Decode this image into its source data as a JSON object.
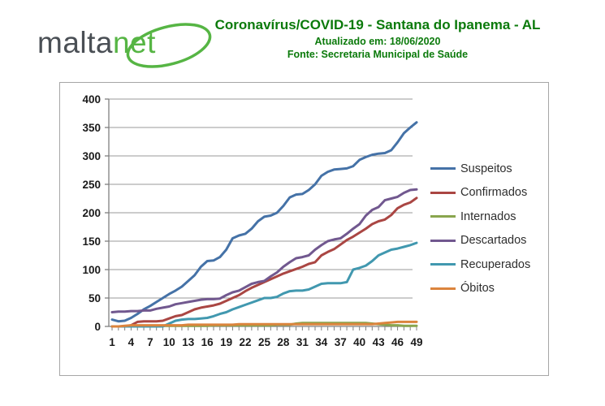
{
  "header": {
    "logo_part1": "malta",
    "logo_part2": "net",
    "logo_gray": "#4a4f55",
    "logo_green": "#56b544",
    "title": "Coronavírus/COVID-19 - Santana do Ipanema - AL",
    "subtitle1": "Atualizado em: 18/06/2020",
    "subtitle2": "Fonte: Secretaria Municipal de Saúde",
    "title_color": "#0b7a0b"
  },
  "chart_data": {
    "type": "line",
    "title": "",
    "xlabel": "",
    "ylabel": "",
    "x": [
      1,
      2,
      3,
      4,
      5,
      6,
      7,
      8,
      9,
      10,
      11,
      12,
      13,
      14,
      15,
      16,
      17,
      18,
      19,
      20,
      21,
      22,
      23,
      24,
      25,
      26,
      27,
      28,
      29,
      30,
      31,
      32,
      33,
      34,
      35,
      36,
      37,
      38,
      39,
      40,
      41,
      42,
      43,
      44,
      45,
      46,
      47,
      48,
      49
    ],
    "x_tick_labels": [
      1,
      4,
      7,
      10,
      13,
      16,
      19,
      22,
      25,
      28,
      31,
      34,
      37,
      40,
      43,
      46,
      49
    ],
    "yticks": [
      0,
      50,
      100,
      150,
      200,
      250,
      300,
      350,
      400
    ],
    "ylim": [
      0,
      400
    ],
    "grid": true,
    "legend_position": "right",
    "series": [
      {
        "name": "Suspeitos",
        "color": "#4572a7",
        "values": [
          12,
          9,
          10,
          15,
          22,
          30,
          36,
          43,
          50,
          57,
          63,
          70,
          80,
          90,
          105,
          115,
          116,
          122,
          135,
          155,
          160,
          163,
          172,
          185,
          193,
          195,
          200,
          212,
          227,
          232,
          233,
          240,
          250,
          265,
          272,
          276,
          277,
          278,
          282,
          293,
          298,
          302,
          304,
          305,
          310,
          324,
          340,
          350,
          359
        ]
      },
      {
        "name": "Confirmados",
        "color": "#aa4643",
        "values": [
          0,
          0,
          0,
          2,
          8,
          9,
          9,
          9,
          10,
          14,
          18,
          20,
          25,
          30,
          33,
          35,
          37,
          40,
          45,
          50,
          55,
          62,
          68,
          73,
          78,
          83,
          88,
          93,
          97,
          101,
          105,
          110,
          113,
          125,
          131,
          136,
          144,
          152,
          158,
          165,
          172,
          180,
          185,
          188,
          196,
          208,
          214,
          218,
          226
        ]
      },
      {
        "name": "Internados",
        "color": "#89a54e",
        "values": [
          0,
          0,
          0,
          0,
          0,
          0,
          0,
          0,
          1,
          1,
          1,
          1,
          1,
          1,
          1,
          1,
          2,
          2,
          2,
          2,
          2,
          2,
          2,
          2,
          2,
          2,
          3,
          3,
          3,
          5,
          6,
          6,
          6,
          6,
          6,
          6,
          6,
          6,
          6,
          6,
          6,
          5,
          4,
          3,
          2,
          2,
          1,
          1,
          1
        ]
      },
      {
        "name": "Descartados",
        "color": "#71588f",
        "values": [
          25,
          26,
          26,
          27,
          27,
          28,
          28,
          31,
          33,
          35,
          39,
          41,
          43,
          45,
          47,
          48,
          48,
          49,
          55,
          60,
          63,
          69,
          75,
          78,
          80,
          88,
          95,
          105,
          113,
          120,
          122,
          125,
          135,
          143,
          150,
          153,
          155,
          163,
          172,
          180,
          195,
          205,
          210,
          222,
          225,
          228,
          235,
          240,
          241
        ]
      },
      {
        "name": "Recuperados",
        "color": "#4198af",
        "values": [
          0,
          0,
          0,
          0,
          0,
          0,
          0,
          0,
          0,
          5,
          10,
          12,
          13,
          13,
          14,
          15,
          18,
          22,
          25,
          30,
          34,
          38,
          42,
          46,
          50,
          50,
          52,
          58,
          62,
          63,
          63,
          65,
          70,
          75,
          76,
          76,
          76,
          78,
          100,
          103,
          107,
          115,
          125,
          130,
          135,
          137,
          140,
          143,
          147
        ]
      },
      {
        "name": "Óbitos",
        "color": "#db843d",
        "values": [
          0,
          0,
          1,
          2,
          2,
          2,
          2,
          2,
          2,
          2,
          2,
          2,
          3,
          3,
          3,
          3,
          3,
          3,
          3,
          3,
          4,
          4,
          4,
          4,
          4,
          4,
          4,
          4,
          4,
          4,
          4,
          4,
          4,
          4,
          4,
          4,
          4,
          4,
          4,
          4,
          4,
          4,
          5,
          6,
          7,
          8,
          8,
          8,
          8
        ]
      }
    ]
  }
}
